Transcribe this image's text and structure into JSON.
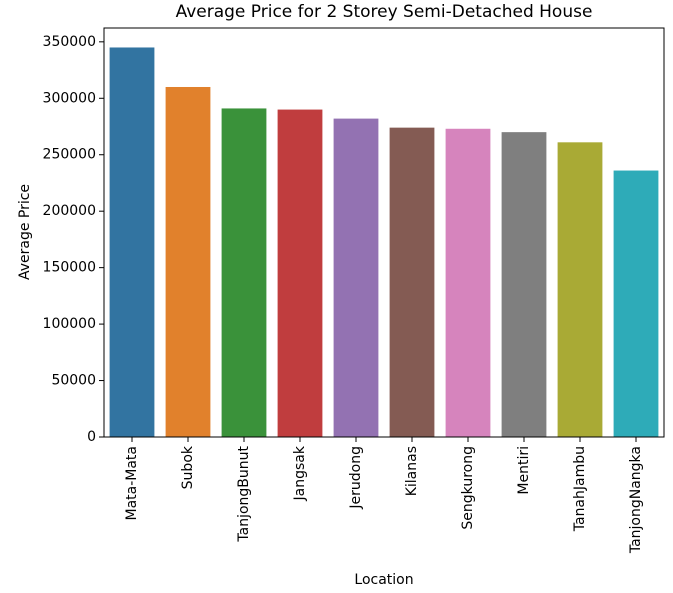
{
  "chart_data": {
    "type": "bar",
    "title": "Average Price for 2 Storey Semi-Detached House",
    "xlabel": "Location",
    "ylabel": "Average Price",
    "categories": [
      "Mata-Mata",
      "Subok",
      "TanjongBunut",
      "Jangsak",
      "Jerudong",
      "Kilanas",
      "Sengkurong",
      "Mentiri",
      "TanahJambu",
      "TanjongNangka"
    ],
    "values": [
      345000,
      310000,
      291000,
      290000,
      282000,
      274000,
      273000,
      270000,
      261000,
      236000
    ],
    "colors": [
      "#3274a1",
      "#e1812c",
      "#3a923a",
      "#c03d3e",
      "#9372b2",
      "#845b53",
      "#d684bd",
      "#7f7f7f",
      "#a9aa35",
      "#2eabb8"
    ],
    "yticks": [
      0,
      50000,
      100000,
      150000,
      200000,
      250000,
      300000,
      350000
    ],
    "ylim": [
      0,
      362250
    ],
    "grid": false,
    "legend": "none"
  }
}
